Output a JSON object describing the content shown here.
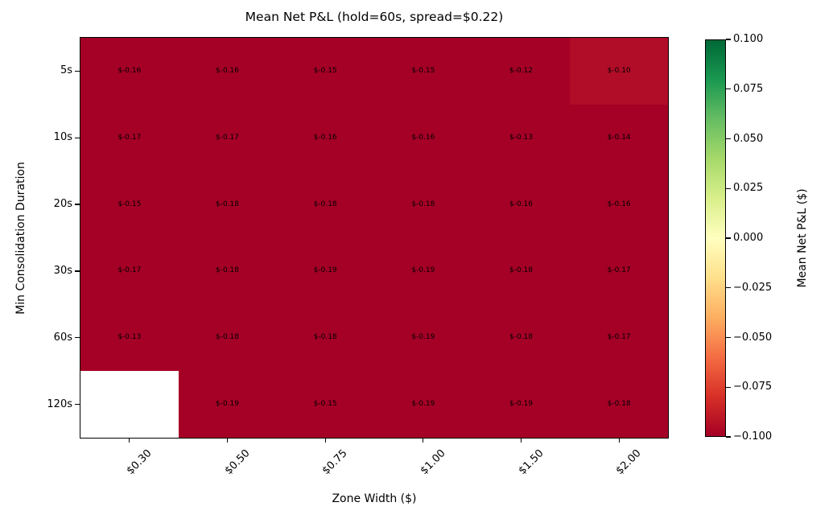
{
  "chart_data": {
    "type": "heatmap",
    "title": "Mean Net P&L (hold=60s, spread=$0.22)",
    "xlabel": "Zone Width ($)",
    "ylabel": "Min Consolidation Duration",
    "x_categories": [
      "$0.30",
      "$0.50",
      "$0.75",
      "$1.00",
      "$1.50",
      "$2.00"
    ],
    "y_categories": [
      "5s",
      "10s",
      "20s",
      "30s",
      "60s",
      "120s"
    ],
    "values": [
      [
        -0.16,
        -0.16,
        -0.15,
        -0.15,
        -0.12,
        -0.1
      ],
      [
        -0.17,
        -0.17,
        -0.16,
        -0.16,
        -0.13,
        -0.14
      ],
      [
        -0.15,
        -0.18,
        -0.18,
        -0.18,
        -0.16,
        -0.16
      ],
      [
        -0.17,
        -0.18,
        -0.19,
        -0.19,
        -0.18,
        -0.17
      ],
      [
        -0.13,
        -0.18,
        -0.18,
        -0.19,
        -0.18,
        -0.17
      ],
      [
        null,
        -0.19,
        -0.15,
        -0.19,
        -0.19,
        -0.18
      ]
    ],
    "cell_labels": [
      [
        "$-0.16",
        "$-0.16",
        "$-0.15",
        "$-0.15",
        "$-0.12",
        "$-0.10"
      ],
      [
        "$-0.17",
        "$-0.17",
        "$-0.16",
        "$-0.16",
        "$-0.13",
        "$-0.14"
      ],
      [
        "$-0.15",
        "$-0.18",
        "$-0.18",
        "$-0.18",
        "$-0.16",
        "$-0.16"
      ],
      [
        "$-0.17",
        "$-0.18",
        "$-0.19",
        "$-0.19",
        "$-0.18",
        "$-0.17"
      ],
      [
        "$-0.13",
        "$-0.18",
        "$-0.18",
        "$-0.19",
        "$-0.18",
        "$-0.17"
      ],
      [
        null,
        "$-0.19",
        "$-0.15",
        "$-0.19",
        "$-0.19",
        "$-0.18"
      ]
    ],
    "cell_colors": [
      [
        "#a50026",
        "#a50026",
        "#a50026",
        "#a50026",
        "#a50026",
        "#b10d28"
      ],
      [
        "#a50026",
        "#a50026",
        "#a50026",
        "#a50026",
        "#a50026",
        "#a50026"
      ],
      [
        "#a50026",
        "#a50026",
        "#a50026",
        "#a50026",
        "#a50026",
        "#a50026"
      ],
      [
        "#a50026",
        "#a50026",
        "#a50026",
        "#a50026",
        "#a50026",
        "#a50026"
      ],
      [
        "#a50026",
        "#a50026",
        "#a50026",
        "#a50026",
        "#a50026",
        "#a50026"
      ],
      [
        "#ffffff",
        "#a50026",
        "#a50026",
        "#a50026",
        "#a50026",
        "#a50026"
      ]
    ],
    "missing_cell_color": "#ffffff",
    "grid": false,
    "legend_position": "right-colorbar",
    "colorbar": {
      "label": "Mean Net P&L ($)",
      "vmin": -0.1,
      "vmax": 0.1,
      "colormap": "RdYlGn",
      "tick_labels": [
        "0.100",
        "0.075",
        "0.050",
        "0.025",
        "0.000",
        "−0.025",
        "−0.050",
        "−0.075",
        "−0.100"
      ],
      "gradient_colors": [
        "#a50026",
        "#d73027",
        "#f46d43",
        "#fdae61",
        "#fee08b",
        "#ffffbf",
        "#d9ef8b",
        "#a6d96a",
        "#66bd63",
        "#1a9850",
        "#006837"
      ]
    },
    "annotation_color": "#000000",
    "axis_color": "#000000"
  }
}
